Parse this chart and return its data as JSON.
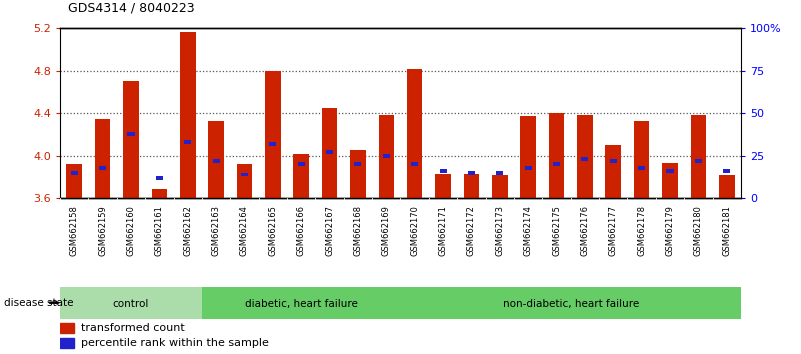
{
  "title": "GDS4314 / 8040223",
  "samples": [
    "GSM662158",
    "GSM662159",
    "GSM662160",
    "GSM662161",
    "GSM662162",
    "GSM662163",
    "GSM662164",
    "GSM662165",
    "GSM662166",
    "GSM662167",
    "GSM662168",
    "GSM662169",
    "GSM662170",
    "GSM662171",
    "GSM662172",
    "GSM662173",
    "GSM662174",
    "GSM662175",
    "GSM662176",
    "GSM662177",
    "GSM662178",
    "GSM662179",
    "GSM662180",
    "GSM662181"
  ],
  "red_values": [
    3.92,
    4.35,
    4.7,
    3.69,
    5.17,
    4.33,
    3.92,
    4.8,
    4.02,
    4.45,
    4.05,
    4.38,
    4.82,
    3.83,
    3.83,
    3.82,
    4.37,
    4.4,
    4.38,
    4.1,
    4.33,
    3.93,
    4.38,
    3.82
  ],
  "blue_values": [
    15,
    18,
    38,
    12,
    33,
    22,
    14,
    32,
    20,
    27,
    20,
    25,
    20,
    16,
    15,
    15,
    18,
    20,
    23,
    22,
    18,
    16,
    22,
    16
  ],
  "ylim_left": [
    3.6,
    5.2
  ],
  "ylim_right": [
    0,
    100
  ],
  "yticks_left": [
    3.6,
    4.0,
    4.4,
    4.8,
    5.2
  ],
  "ytick_labels_left": [
    "3.6",
    "4.0",
    "4.4",
    "4.8",
    "5.2"
  ],
  "yticks_right": [
    0,
    25,
    50,
    75,
    100
  ],
  "ytick_labels_right": [
    "0",
    "25",
    "50",
    "75",
    "100%"
  ],
  "groups": [
    {
      "label": "control",
      "start": 0,
      "end": 5
    },
    {
      "label": "diabetic, heart failure",
      "start": 5,
      "end": 12
    },
    {
      "label": "non-diabetic, heart failure",
      "start": 12,
      "end": 24
    }
  ],
  "group_colors": [
    "#AADDAA",
    "#66CC66",
    "#66CC66"
  ],
  "bar_width": 0.55,
  "red_color": "#CC2200",
  "blue_color": "#2222CC",
  "legend_red": "transformed count",
  "legend_blue": "percentile rank within the sample",
  "disease_state_label": "disease state",
  "bg_color": "#FFFFFF",
  "tick_bg_color": "#CCCCCC",
  "grid_color": "#555555"
}
